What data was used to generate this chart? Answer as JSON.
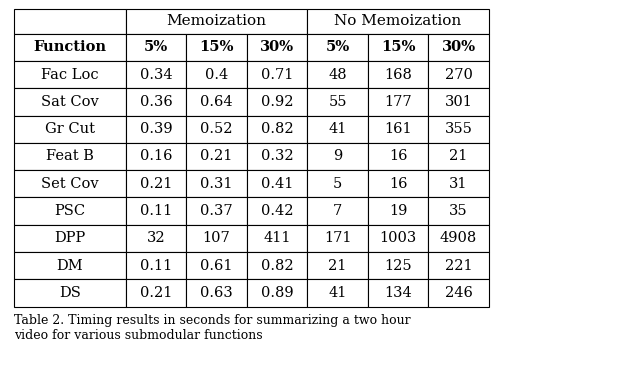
{
  "title": "Table 2. Timing results in seconds for summarizing a two hour\nvideo for various submodular functions",
  "row_header": "Function",
  "col_labels": [
    "5%",
    "15%",
    "30%",
    "5%",
    "15%",
    "30%"
  ],
  "memo_label": "Memoization",
  "nomemo_label": "No Memoization",
  "rows": [
    {
      "name": "Fac Loc",
      "memo": [
        "0.34",
        "0.4",
        "0.71"
      ],
      "nomemo": [
        "48",
        "168",
        "270"
      ]
    },
    {
      "name": "Sat Cov",
      "memo": [
        "0.36",
        "0.64",
        "0.92"
      ],
      "nomemo": [
        "55",
        "177",
        "301"
      ]
    },
    {
      "name": "Gr Cut",
      "memo": [
        "0.39",
        "0.52",
        "0.82"
      ],
      "nomemo": [
        "41",
        "161",
        "355"
      ]
    },
    {
      "name": "Feat B",
      "memo": [
        "0.16",
        "0.21",
        "0.32"
      ],
      "nomemo": [
        "9",
        "16",
        "21"
      ]
    },
    {
      "name": "Set Cov",
      "memo": [
        "0.21",
        "0.31",
        "0.41"
      ],
      "nomemo": [
        "5",
        "16",
        "31"
      ]
    },
    {
      "name": "PSC",
      "memo": [
        "0.11",
        "0.37",
        "0.42"
      ],
      "nomemo": [
        "7",
        "19",
        "35"
      ]
    },
    {
      "name": "DPP",
      "memo": [
        "32",
        "107",
        "411"
      ],
      "nomemo": [
        "171",
        "1003",
        "4908"
      ]
    },
    {
      "name": "DM",
      "memo": [
        "0.11",
        "0.61",
        "0.82"
      ],
      "nomemo": [
        "21",
        "125",
        "221"
      ]
    },
    {
      "name": "DS",
      "memo": [
        "0.21",
        "0.63",
        "0.89"
      ],
      "nomemo": [
        "41",
        "134",
        "246"
      ]
    }
  ],
  "bg_color": "#ffffff",
  "text_color": "#000000",
  "line_color": "#000000",
  "font_size": 10.5,
  "caption_font_size": 9.0,
  "header_font_size": 11.0
}
